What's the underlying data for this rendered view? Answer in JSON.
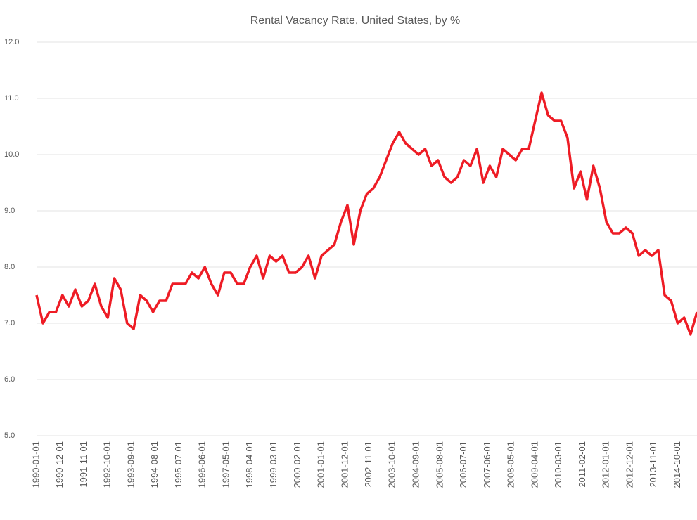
{
  "chart_data": {
    "type": "line",
    "title": "Rental Vacancy Rate, United States, by %",
    "x": [
      "1990-01-01",
      "1990-04-01",
      "1990-07-01",
      "1990-10-01",
      "1991-01-01",
      "1991-04-01",
      "1991-07-01",
      "1991-10-01",
      "1992-01-01",
      "1992-04-01",
      "1992-07-01",
      "1992-10-01",
      "1993-01-01",
      "1993-04-01",
      "1993-07-01",
      "1993-10-01",
      "1994-01-01",
      "1994-04-01",
      "1994-07-01",
      "1994-10-01",
      "1995-01-01",
      "1995-04-01",
      "1995-07-01",
      "1995-10-01",
      "1996-01-01",
      "1996-04-01",
      "1996-07-01",
      "1996-10-01",
      "1997-01-01",
      "1997-04-01",
      "1997-07-01",
      "1997-10-01",
      "1998-01-01",
      "1998-04-01",
      "1998-07-01",
      "1998-10-01",
      "1999-01-01",
      "1999-04-01",
      "1999-07-01",
      "1999-10-01",
      "2000-01-01",
      "2000-04-01",
      "2000-07-01",
      "2000-10-01",
      "2001-01-01",
      "2001-04-01",
      "2001-07-01",
      "2001-10-01",
      "2002-01-01",
      "2002-04-01",
      "2002-07-01",
      "2002-10-01",
      "2003-01-01",
      "2003-04-01",
      "2003-07-01",
      "2003-10-01",
      "2004-01-01",
      "2004-04-01",
      "2004-07-01",
      "2004-10-01",
      "2005-01-01",
      "2005-04-01",
      "2005-07-01",
      "2005-10-01",
      "2006-01-01",
      "2006-04-01",
      "2006-07-01",
      "2006-10-01",
      "2007-01-01",
      "2007-04-01",
      "2007-07-01",
      "2007-10-01",
      "2008-01-01",
      "2008-04-01",
      "2008-07-01",
      "2008-10-01",
      "2009-01-01",
      "2009-04-01",
      "2009-07-01",
      "2009-10-01",
      "2010-01-01",
      "2010-04-01",
      "2010-07-01",
      "2010-10-01",
      "2011-01-01",
      "2011-04-01",
      "2011-07-01",
      "2011-10-01",
      "2012-01-01",
      "2012-04-01",
      "2012-07-01",
      "2012-10-01",
      "2013-01-01",
      "2013-04-01",
      "2013-07-01",
      "2013-10-01",
      "2014-01-01",
      "2014-04-01",
      "2014-07-01",
      "2014-10-01",
      "2015-01-01",
      "2015-04-01",
      "2015-07-01"
    ],
    "series": [
      {
        "color": "#ee1c25",
        "values": [
          7.5,
          7.0,
          7.2,
          7.2,
          7.5,
          7.3,
          7.6,
          7.3,
          7.4,
          7.7,
          7.3,
          7.1,
          7.8,
          7.6,
          7.0,
          6.9,
          7.5,
          7.4,
          7.2,
          7.4,
          7.4,
          7.7,
          7.7,
          7.7,
          7.9,
          7.8,
          8.0,
          7.7,
          7.5,
          7.9,
          7.9,
          7.7,
          7.7,
          8.0,
          8.2,
          7.8,
          8.2,
          8.1,
          8.2,
          7.9,
          7.9,
          8.0,
          8.2,
          7.8,
          8.2,
          8.3,
          8.4,
          8.8,
          9.1,
          8.4,
          9.0,
          9.3,
          9.4,
          9.6,
          9.9,
          10.2,
          10.4,
          10.2,
          10.1,
          10.0,
          10.1,
          9.8,
          9.9,
          9.6,
          9.5,
          9.6,
          9.9,
          9.8,
          10.1,
          9.5,
          9.8,
          9.6,
          10.1,
          10.0,
          9.9,
          10.1,
          10.1,
          10.6,
          11.1,
          10.7,
          10.6,
          10.6,
          10.3,
          9.4,
          9.7,
          9.2,
          9.8,
          9.4,
          8.8,
          8.6,
          8.6,
          8.7,
          8.6,
          8.2,
          8.3,
          8.2,
          8.3,
          7.5,
          7.4,
          7.0,
          7.1,
          6.8,
          7.2
        ]
      }
    ],
    "xlim": [
      "1990-01-01",
      "2015-07-01"
    ],
    "xticks": [
      "1990-01-01",
      "1990-12-01",
      "1991-11-01",
      "1992-10-01",
      "1993-09-01",
      "1994-08-01",
      "1995-07-01",
      "1996-06-01",
      "1997-05-01",
      "1998-04-01",
      "1999-03-01",
      "2000-02-01",
      "2001-01-01",
      "2001-12-01",
      "2002-11-01",
      "2003-10-01",
      "2004-09-01",
      "2005-08-01",
      "2006-07-01",
      "2007-06-01",
      "2008-05-01",
      "2009-04-01",
      "2010-03-01",
      "2011-02-01",
      "2012-01-01",
      "2012-12-01",
      "2013-11-01",
      "2014-10-01"
    ],
    "ylim": [
      5,
      12
    ],
    "yticks": [
      {
        "value": 5,
        "label": "5.0"
      },
      {
        "value": 6,
        "label": "6.0"
      },
      {
        "value": 7,
        "label": "7.0"
      },
      {
        "value": 8,
        "label": "8.0"
      },
      {
        "value": 9,
        "label": "9.0"
      },
      {
        "value": 10,
        "label": "10.0"
      },
      {
        "value": 11,
        "label": "11.0"
      },
      {
        "value": 12,
        "label": "12.0"
      }
    ],
    "grid": true
  }
}
